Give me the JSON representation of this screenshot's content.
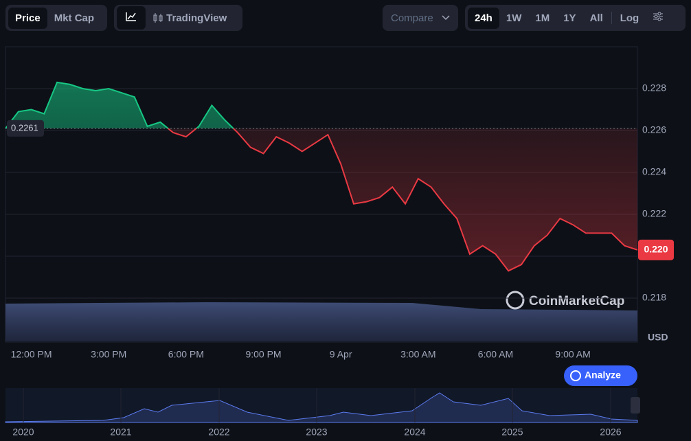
{
  "toolbar": {
    "price": "Price",
    "mkt_cap": "Mkt Cap",
    "tradingview": "TradingView",
    "compare": "Compare",
    "ranges": [
      "24h",
      "1W",
      "1M",
      "1Y",
      "All"
    ],
    "log": "Log"
  },
  "watermark": "CoinMarketCap",
  "analyze": "Analyze",
  "chart_data": {
    "type": "line",
    "categories": [
      "",
      "",
      "12:00 PM",
      "",
      "",
      "",
      "",
      "",
      "3:00 PM",
      "",
      "",
      "",
      "",
      "",
      "6:00 PM",
      "",
      "",
      "",
      "",
      "",
      "9:00 PM",
      "",
      "",
      "",
      "",
      "",
      "9 Apr",
      "",
      "",
      "",
      "",
      "",
      "3:00 AM",
      "",
      "",
      "",
      "",
      "",
      "6:00 AM",
      "",
      "",
      "",
      "",
      "",
      "9:00 AM",
      "",
      "",
      "",
      "",
      ""
    ],
    "series": [
      {
        "name": "Price",
        "color_up": "#16c784",
        "color_down": "#ea3943",
        "values": [
          0.2261,
          0.2269,
          0.227,
          0.2268,
          0.2283,
          0.2282,
          0.228,
          0.2279,
          0.228,
          0.2278,
          0.2276,
          0.2262,
          0.2264,
          0.2259,
          0.2257,
          0.2262,
          0.2272,
          0.2265,
          0.2259,
          0.2252,
          0.2249,
          0.2257,
          0.2254,
          0.225,
          0.2254,
          0.2258,
          0.2244,
          0.2225,
          0.2226,
          0.2228,
          0.2233,
          0.2225,
          0.2237,
          0.2233,
          0.2225,
          0.2218,
          0.2201,
          0.2205,
          0.2201,
          0.2193,
          0.2196,
          0.2205,
          0.221,
          0.2218,
          0.2215,
          0.2211,
          0.2211,
          0.2211,
          0.2205,
          0.2203
        ]
      }
    ],
    "baseline": 0.2261,
    "last_label": "0.220",
    "y_unit": "USD",
    "ylim": [
      0.2159,
      0.23
    ],
    "yticks": [
      0.218,
      {
        "value": 0.22,
        "label": "0.220"
      },
      0.222,
      0.224,
      0.226,
      0.228
    ],
    "grid": true
  },
  "navigator": {
    "labels": [
      "2020",
      "2021",
      "2022",
      "2023",
      "2024",
      "2025",
      "2026"
    ]
  }
}
